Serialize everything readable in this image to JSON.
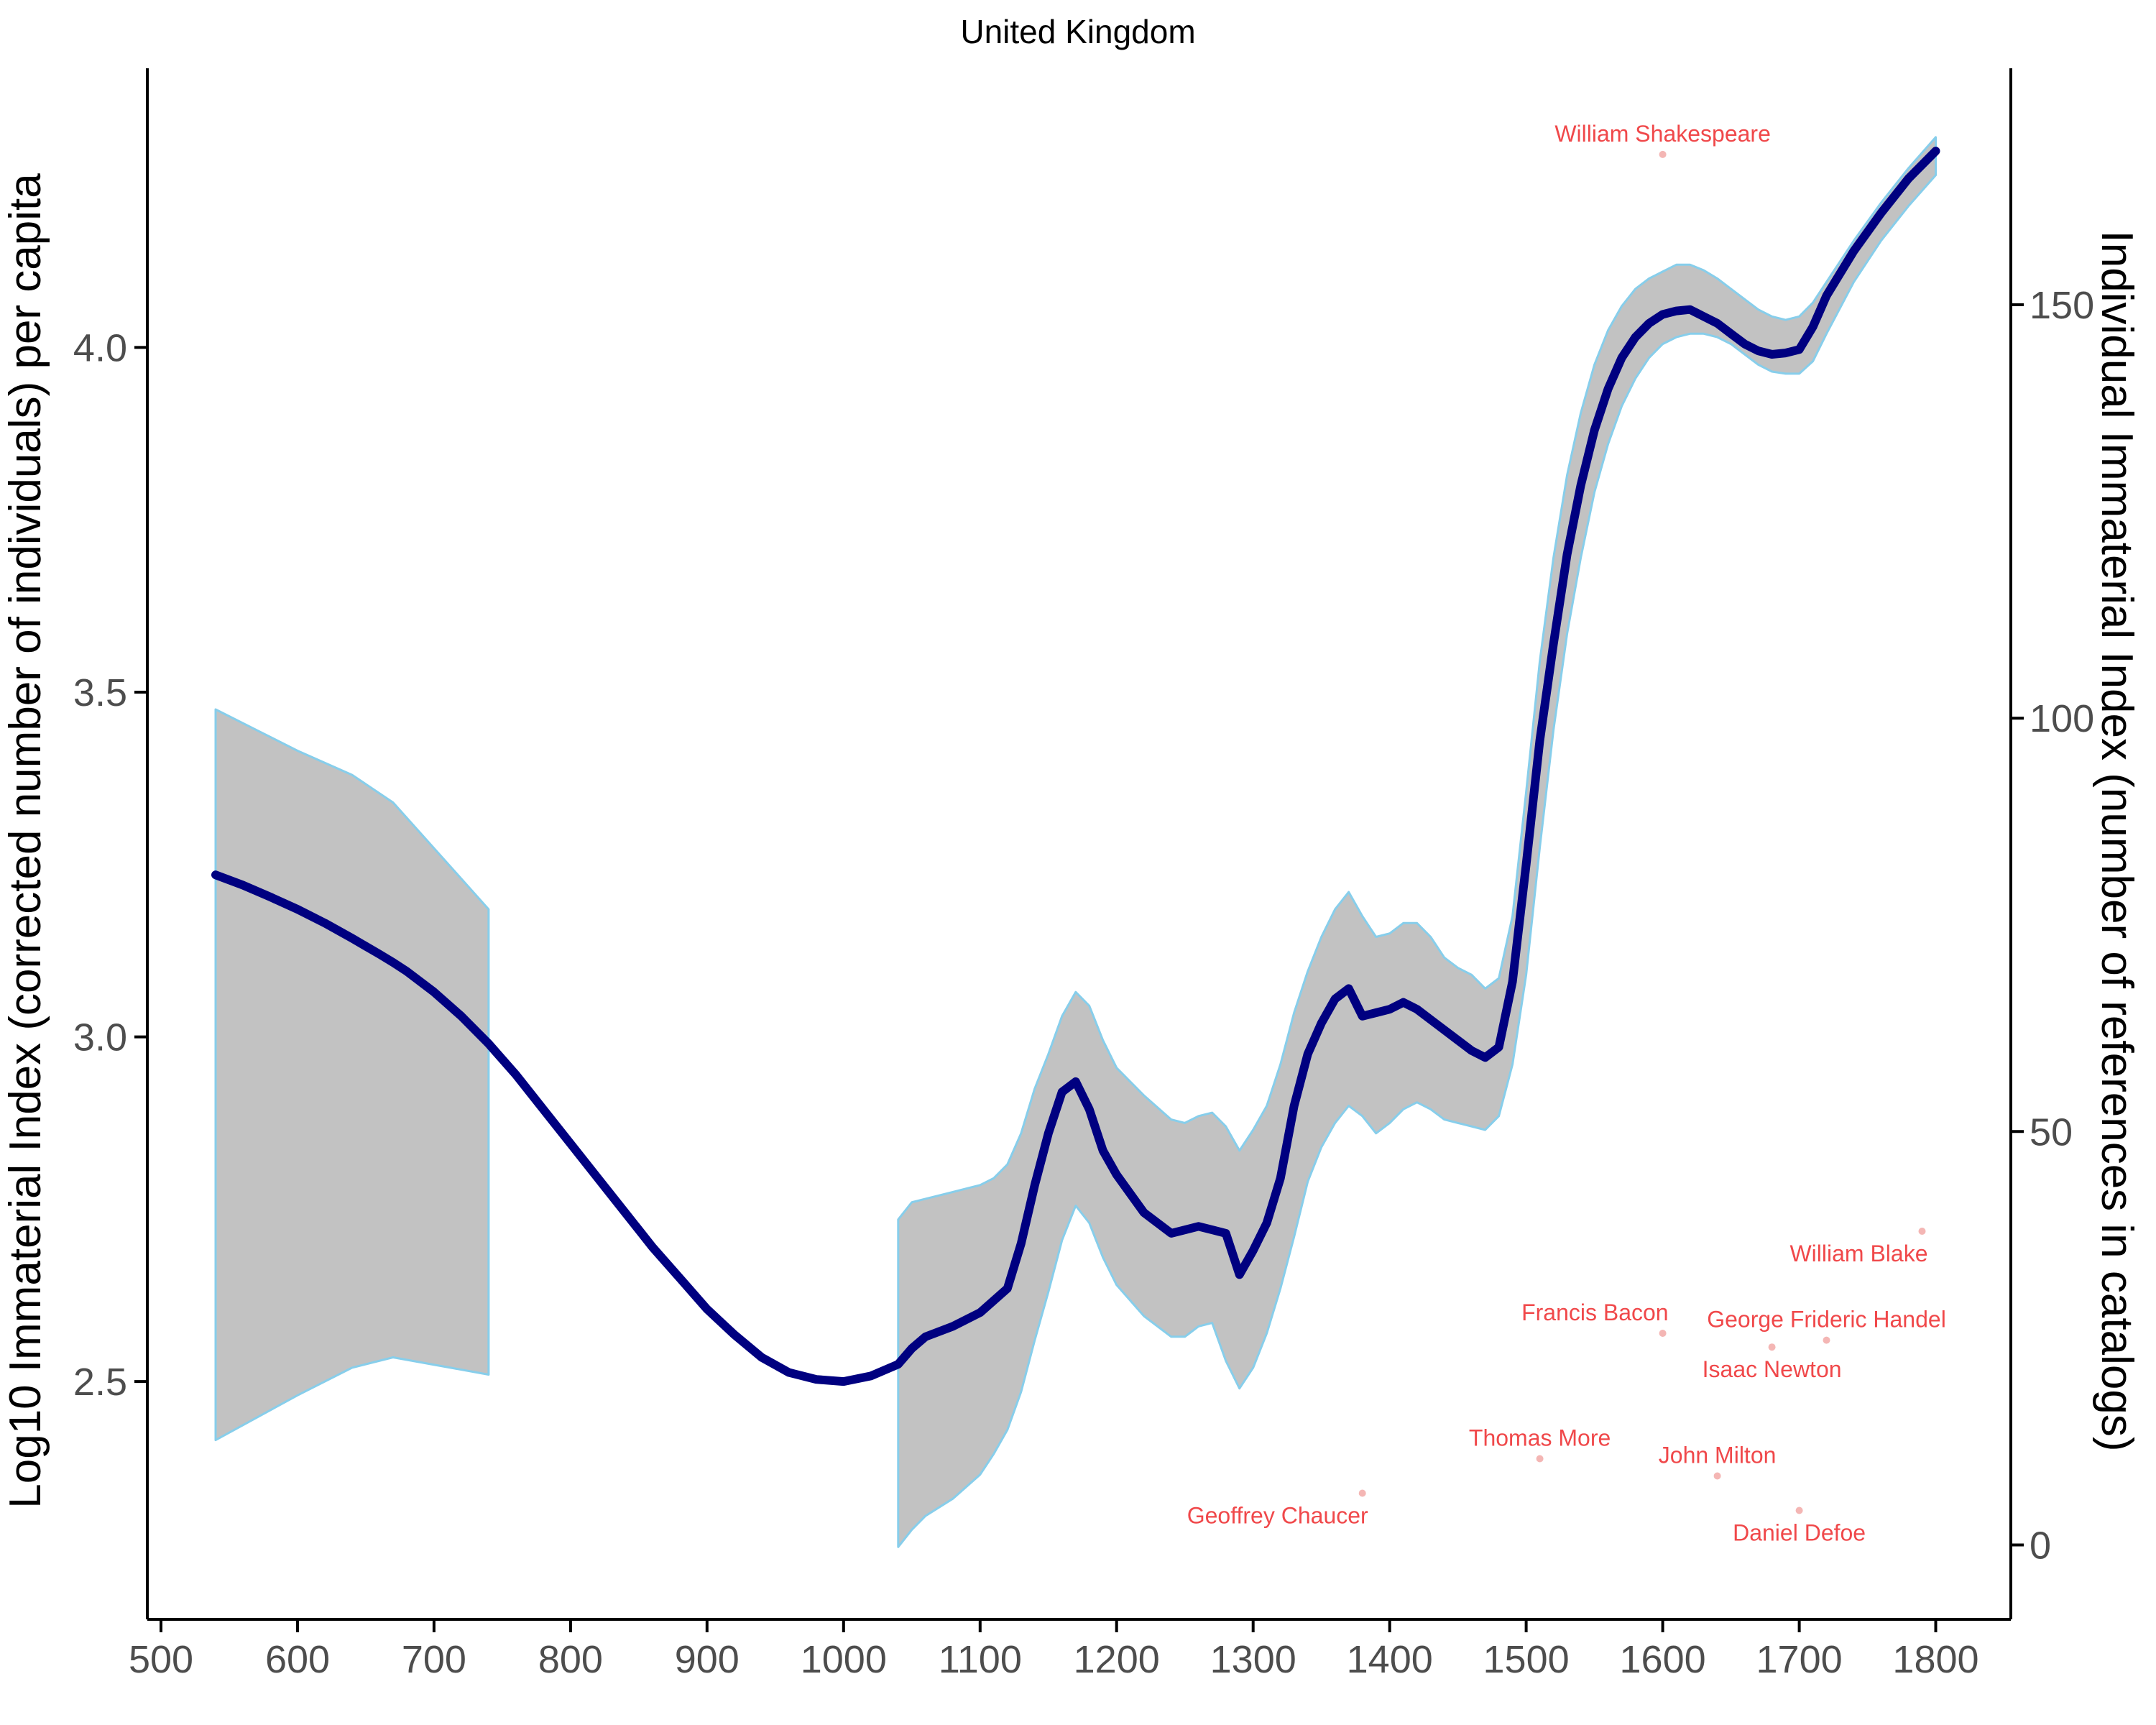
{
  "chart_data": {
    "type": "line",
    "title": "United Kingdom",
    "ylabel": "Log10 Immaterial Index (corrected number of individuals) per capita",
    "y2label": "Individual Immaterial Index (number of references in catalogs)",
    "xlim": [
      490,
      1855
    ],
    "ylim": [
      2.155,
      4.405
    ],
    "y2lim": [
      -9.0,
      178.6
    ],
    "xticks": [
      "500",
      "600",
      "700",
      "800",
      "900",
      "1000",
      "1100",
      "1200",
      "1300",
      "1400",
      "1500",
      "1600",
      "1700",
      "1800"
    ],
    "yticks": [
      "2.5",
      "3.0",
      "3.5",
      "4.0"
    ],
    "y2ticks": [
      "0",
      "50",
      "100",
      "150"
    ],
    "grid": false,
    "legend": "none",
    "colors": {
      "line": "#000080",
      "ribbon_fill": "#c2c2c2",
      "ribbon_edge": "#87ceeb",
      "annotation": "#f0484a",
      "annotation_point": "#f4b6b4",
      "axis": "#000000",
      "tick_label": "#4d4d4d"
    },
    "series": [
      {
        "x": [
          540,
          560,
          580,
          600,
          620,
          640,
          660,
          670,
          680,
          700,
          720,
          740,
          760,
          780,
          800,
          820,
          840,
          860,
          880,
          900,
          920,
          940,
          960,
          980,
          1000,
          1020,
          1040,
          1050,
          1060,
          1080,
          1100,
          1120,
          1130,
          1140,
          1150,
          1160,
          1170,
          1180,
          1190,
          1200,
          1220,
          1240,
          1260,
          1270,
          1280,
          1290,
          1300,
          1310,
          1320,
          1330,
          1340,
          1350,
          1360,
          1370,
          1380,
          1390,
          1400,
          1410,
          1420,
          1430,
          1440,
          1450,
          1460,
          1470,
          1480,
          1490,
          1500,
          1510,
          1520,
          1530,
          1540,
          1550,
          1560,
          1570,
          1580,
          1590,
          1600,
          1610,
          1620,
          1625,
          1630,
          1640,
          1650,
          1660,
          1670,
          1680,
          1690,
          1700,
          1710,
          1720,
          1740,
          1760,
          1780,
          1800
        ],
        "y": [
          3.235,
          3.22,
          3.203,
          3.185,
          3.165,
          3.143,
          3.12,
          3.108,
          3.095,
          3.065,
          3.03,
          2.99,
          2.945,
          2.895,
          2.845,
          2.795,
          2.745,
          2.695,
          2.65,
          2.605,
          2.568,
          2.535,
          2.513,
          2.503,
          2.5,
          2.508,
          2.525,
          2.548,
          2.565,
          2.58,
          2.6,
          2.635,
          2.7,
          2.785,
          2.86,
          2.92,
          2.935,
          2.895,
          2.835,
          2.8,
          2.745,
          2.715,
          2.725,
          2.72,
          2.715,
          2.655,
          2.69,
          2.73,
          2.795,
          2.9,
          2.975,
          3.02,
          3.055,
          3.07,
          3.03,
          3.035,
          3.04,
          3.05,
          3.04,
          3.025,
          3.01,
          2.995,
          2.98,
          2.97,
          2.985,
          3.08,
          3.25,
          3.43,
          3.57,
          3.7,
          3.8,
          3.88,
          3.94,
          3.985,
          4.015,
          4.035,
          4.048,
          4.053,
          4.055,
          4.05,
          4.045,
          4.035,
          4.02,
          4.005,
          3.995,
          3.99,
          3.992,
          3.997,
          4.03,
          4.075,
          4.14,
          4.195,
          4.245,
          4.285
        ]
      }
    ],
    "ribbons": [
      {
        "x": [
          540,
          600,
          640,
          670,
          740
        ],
        "ymin": [
          2.415,
          2.48,
          2.52,
          2.535,
          2.51
        ],
        "ymax": [
          3.475,
          3.415,
          3.38,
          3.34,
          3.185
        ]
      },
      {
        "x": [
          1040,
          1050,
          1060,
          1080,
          1100,
          1110,
          1120,
          1130,
          1140,
          1150,
          1160,
          1170,
          1180,
          1190,
          1200,
          1220,
          1240,
          1250,
          1260,
          1270,
          1280,
          1290,
          1300,
          1310,
          1320,
          1330,
          1340,
          1350,
          1360,
          1370,
          1380,
          1390,
          1400,
          1410,
          1420,
          1430,
          1440,
          1450,
          1460,
          1470,
          1480,
          1490,
          1500,
          1510,
          1520,
          1530,
          1540,
          1550,
          1560,
          1570,
          1580,
          1590,
          1600,
          1610,
          1620,
          1630,
          1640,
          1650,
          1660,
          1670,
          1680,
          1690,
          1700,
          1710,
          1720,
          1740,
          1760,
          1780,
          1800
        ],
        "ymin": [
          2.26,
          2.285,
          2.305,
          2.33,
          2.365,
          2.395,
          2.43,
          2.485,
          2.56,
          2.63,
          2.705,
          2.755,
          2.73,
          2.68,
          2.64,
          2.595,
          2.565,
          2.565,
          2.58,
          2.585,
          2.53,
          2.49,
          2.52,
          2.57,
          2.635,
          2.71,
          2.79,
          2.84,
          2.875,
          2.9,
          2.885,
          2.86,
          2.875,
          2.895,
          2.905,
          2.895,
          2.88,
          2.875,
          2.87,
          2.865,
          2.885,
          2.96,
          3.09,
          3.275,
          3.445,
          3.585,
          3.695,
          3.79,
          3.86,
          3.915,
          3.955,
          3.985,
          4.005,
          4.015,
          4.02,
          4.02,
          4.015,
          4.005,
          3.99,
          3.975,
          3.965,
          3.962,
          3.962,
          3.98,
          4.02,
          4.095,
          4.155,
          4.205,
          4.25
        ],
        "ymax": [
          2.735,
          2.76,
          2.765,
          2.775,
          2.785,
          2.795,
          2.815,
          2.86,
          2.925,
          2.975,
          3.03,
          3.065,
          3.045,
          2.995,
          2.955,
          2.915,
          2.88,
          2.875,
          2.885,
          2.89,
          2.87,
          2.835,
          2.865,
          2.9,
          2.96,
          3.035,
          3.095,
          3.145,
          3.185,
          3.21,
          3.175,
          3.145,
          3.15,
          3.165,
          3.165,
          3.145,
          3.115,
          3.1,
          3.09,
          3.07,
          3.085,
          3.175,
          3.355,
          3.545,
          3.695,
          3.815,
          3.905,
          3.975,
          4.025,
          4.06,
          4.085,
          4.1,
          4.11,
          4.12,
          4.12,
          4.112,
          4.1,
          4.085,
          4.07,
          4.055,
          4.045,
          4.04,
          4.045,
          4.065,
          4.095,
          4.155,
          4.21,
          4.26,
          4.305
        ]
      }
    ],
    "annotations": [
      {
        "label": "William Shakespeare",
        "x": 1600,
        "y": 4.28,
        "align": "middle",
        "pos": "above"
      },
      {
        "label": "William Blake",
        "x": 1790,
        "y": 2.718,
        "align": "end",
        "pos": "below"
      },
      {
        "label": "Francis Bacon",
        "x": 1600,
        "y": 2.57,
        "align": "end",
        "pos": "above"
      },
      {
        "label": "George Frideric Handel",
        "x": 1720,
        "y": 2.56,
        "align": "middle",
        "pos": "above"
      },
      {
        "label": "Isaac Newton",
        "x": 1680,
        "y": 2.55,
        "align": "middle",
        "pos": "below"
      },
      {
        "label": "Thomas More",
        "x": 1510,
        "y": 2.388,
        "align": "middle",
        "pos": "above"
      },
      {
        "label": "John Milton",
        "x": 1640,
        "y": 2.363,
        "align": "middle",
        "pos": "above"
      },
      {
        "label": "Geoffrey Chaucer",
        "x": 1380,
        "y": 2.338,
        "align": "end",
        "pos": "below"
      },
      {
        "label": "Daniel Defoe",
        "x": 1700,
        "y": 2.313,
        "align": "middle",
        "pos": "below"
      }
    ]
  }
}
